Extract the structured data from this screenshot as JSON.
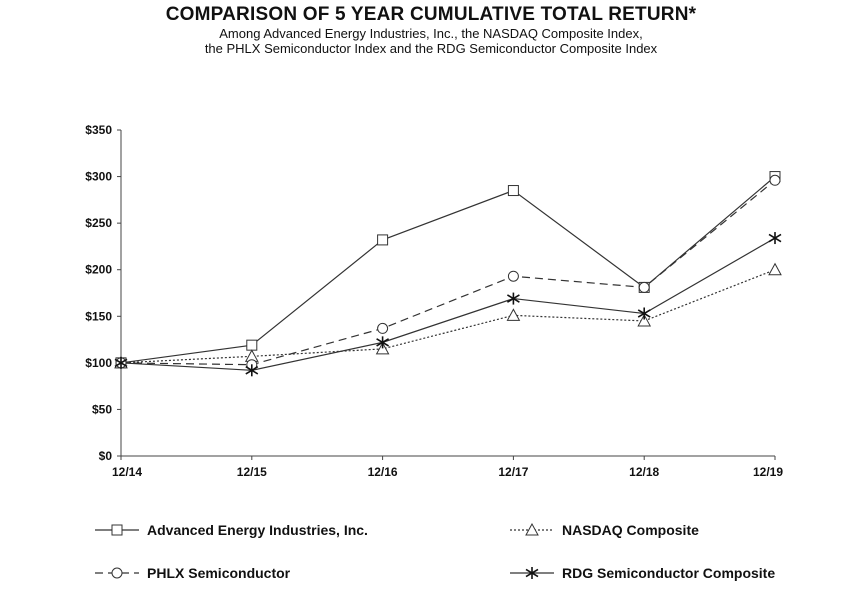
{
  "chart_data": {
    "type": "line",
    "title": "COMPARISON OF 5 YEAR CUMULATIVE TOTAL RETURN*",
    "subtitle_line1": "Among Advanced Energy Industries, Inc., the NASDAQ Composite Index,",
    "subtitle_line2": "the PHLX Semiconductor Index and the RDG Semiconductor Composite Index",
    "categories": [
      "12/14",
      "12/15",
      "12/16",
      "12/17",
      "12/18",
      "12/19"
    ],
    "y_ticks": [
      "$0",
      "$50",
      "$100",
      "$150",
      "$200",
      "$250",
      "$300",
      "$350"
    ],
    "ylim": [
      0,
      350
    ],
    "grid": false,
    "legend_position": "bottom",
    "series": [
      {
        "name": "Advanced Energy Industries, Inc.",
        "values": [
          100,
          119,
          232,
          285,
          181,
          300
        ],
        "marker": "square",
        "dash": "solid"
      },
      {
        "name": "NASDAQ Composite",
        "values": [
          100,
          107,
          115,
          151,
          145,
          200
        ],
        "marker": "triangle",
        "dash": "dotted"
      },
      {
        "name": "PHLX Semiconductor",
        "values": [
          100,
          98,
          137,
          193,
          181,
          296
        ],
        "marker": "circle",
        "dash": "dashed"
      },
      {
        "name": "RDG Semiconductor Composite",
        "values": [
          100,
          92,
          122,
          169,
          153,
          234
        ],
        "marker": "star",
        "dash": "solid"
      }
    ]
  }
}
